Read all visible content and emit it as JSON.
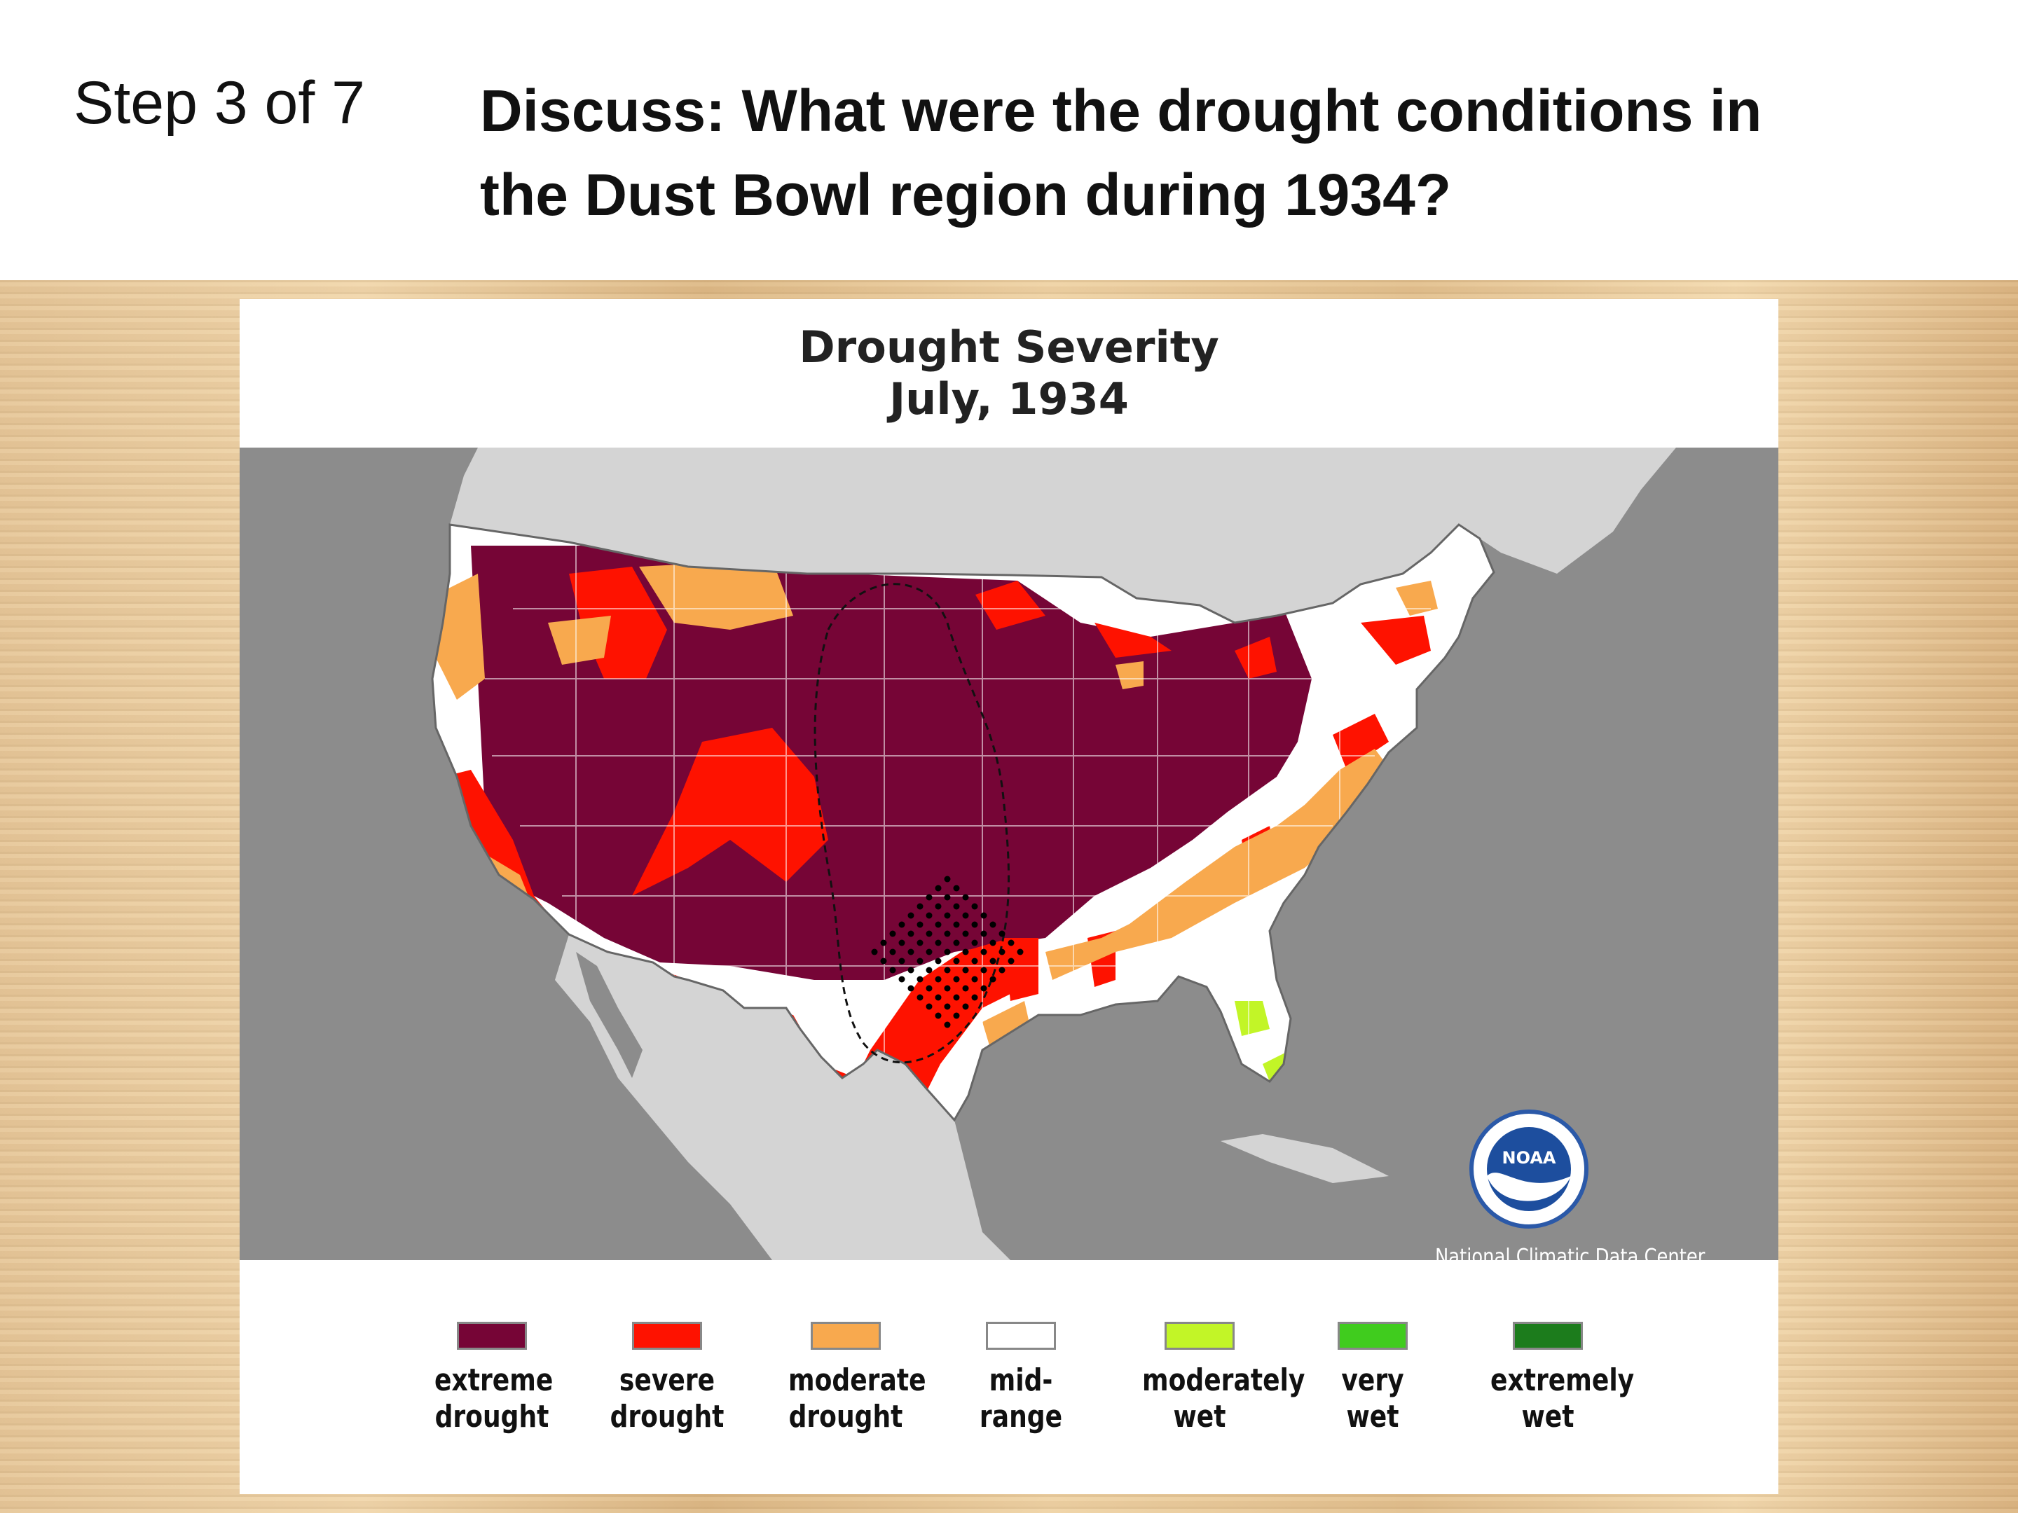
{
  "header": {
    "step": "Step 3 of 7",
    "question_line1": "Discuss: What were the drought conditions in",
    "question_line2": "the Dust Bowl region during 1934?"
  },
  "map": {
    "title_line1": "Drought Severity",
    "title_line2": "July, 1934",
    "noaa_logo_text": "NOAA",
    "source": "National Climatic Data Center",
    "colors": {
      "ocean": "#8c8c8c",
      "land_outside_us": "#d4d4d4",
      "extreme_drought": "#760536",
      "severe_drought": "#fe1200",
      "moderate_drought": "#f8a94e",
      "mid_range": "#ffffff",
      "moderately_wet": "#c2f527",
      "very_wet": "#40cc1e",
      "extremely_wet": "#1c7c1c"
    }
  },
  "legend": [
    {
      "line1": "extreme",
      "line2": "drought",
      "color": "#760536"
    },
    {
      "line1": "severe",
      "line2": "drought",
      "color": "#fe1200"
    },
    {
      "line1": "moderate",
      "line2": "drought",
      "color": "#f8a94e"
    },
    {
      "line1": "mid-",
      "line2": "range",
      "color": "#ffffff"
    },
    {
      "line1": "moderately",
      "line2": "wet",
      "color": "#c2f527"
    },
    {
      "line1": "very",
      "line2": "wet",
      "color": "#40cc1e"
    },
    {
      "line1": "extremely",
      "line2": "wet",
      "color": "#1c7c1c"
    }
  ]
}
